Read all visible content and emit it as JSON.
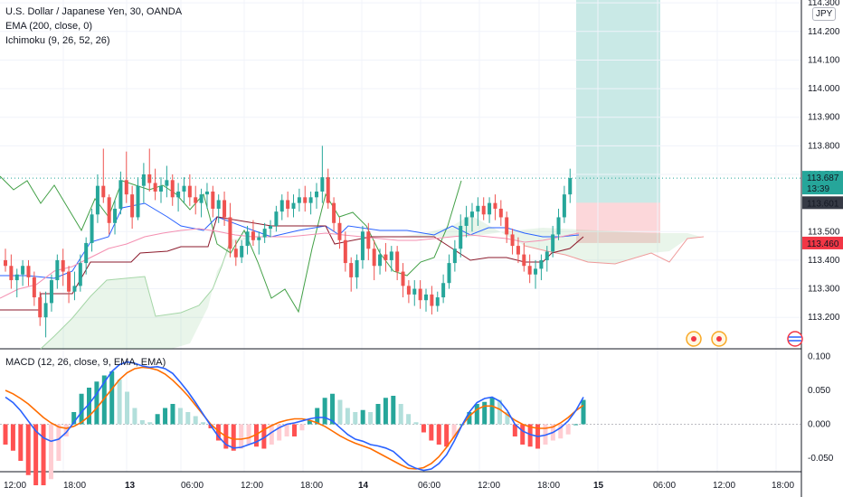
{
  "legend": {
    "symbol_line": "U.S. Dollar / Japanese Yen, 30, OANDA",
    "ema_line": "EMA (200, close, 0)",
    "ichimoku_line": "Ichimoku (9, 26, 52, 26)",
    "macd_line": "MACD (12, 26, close, 9, EMA, EMA)"
  },
  "currency_badge": "JPY",
  "price_scale": {
    "ticks": [
      "114.300",
      "114.200",
      "114.100",
      "114.000",
      "113.900",
      "113.800",
      "113.700",
      "113.500",
      "113.400",
      "113.300",
      "113.200"
    ],
    "current_price": "113.687",
    "countdown": "13:39",
    "entry_price": "113.601",
    "stop_price": "113.460",
    "colors": {
      "current": "#26a69a",
      "entry": "#363a45",
      "stop": "#f23645"
    }
  },
  "macd_scale": {
    "ticks": [
      "0.100",
      "0.050",
      "0.000",
      "-0.050"
    ]
  },
  "time_axis": {
    "labels": [
      "12:00",
      "18:00",
      "13",
      "06:00",
      "12:00",
      "18:00",
      "14",
      "06:00",
      "12:00",
      "18:00",
      "15",
      "06:00",
      "12:00",
      "18:00"
    ],
    "bold_labels": [
      "13",
      "14",
      "15"
    ]
  },
  "chart_data": {
    "type": "candlestick",
    "symbol": "USDJPY",
    "interval": "30",
    "price_range": [
      113.09,
      114.31
    ],
    "candles": [
      [
        113.4,
        113.44,
        113.36,
        113.38
      ],
      [
        113.38,
        113.42,
        113.3,
        113.33
      ],
      [
        113.33,
        113.37,
        113.27,
        113.35
      ],
      [
        113.35,
        113.4,
        113.31,
        113.38
      ],
      [
        113.38,
        113.4,
        113.31,
        113.34
      ],
      [
        113.34,
        113.36,
        113.24,
        113.27
      ],
      [
        113.27,
        113.29,
        113.17,
        113.2
      ],
      [
        113.2,
        113.29,
        113.13,
        113.25
      ],
      [
        113.25,
        113.35,
        113.22,
        113.33
      ],
      [
        113.33,
        113.42,
        113.3,
        113.4
      ],
      [
        113.4,
        113.44,
        113.31,
        113.36
      ],
      [
        113.36,
        113.38,
        113.25,
        113.29
      ],
      [
        113.29,
        113.36,
        113.26,
        113.31
      ],
      [
        113.31,
        113.42,
        113.29,
        113.39
      ],
      [
        113.39,
        113.48,
        113.35,
        113.46
      ],
      [
        113.46,
        113.58,
        113.43,
        113.56
      ],
      [
        113.56,
        113.7,
        113.53,
        113.66
      ],
      [
        113.66,
        113.79,
        113.6,
        113.62
      ],
      [
        113.62,
        113.63,
        113.49,
        113.53
      ],
      [
        113.53,
        113.61,
        113.49,
        113.58
      ],
      [
        113.58,
        113.71,
        113.56,
        113.68
      ],
      [
        113.68,
        113.78,
        113.6,
        113.63
      ],
      [
        113.63,
        113.66,
        113.51,
        113.55
      ],
      [
        113.55,
        113.69,
        113.54,
        113.66
      ],
      [
        113.66,
        113.74,
        113.6,
        113.7
      ],
      [
        113.7,
        113.79,
        113.64,
        113.67
      ],
      [
        113.67,
        113.72,
        113.61,
        113.64
      ],
      [
        113.64,
        113.69,
        113.6,
        113.66
      ],
      [
        113.66,
        113.73,
        113.62,
        113.68
      ],
      [
        113.68,
        113.7,
        113.59,
        113.62
      ],
      [
        113.62,
        113.67,
        113.57,
        113.64
      ],
      [
        113.64,
        113.69,
        113.6,
        113.66
      ],
      [
        113.66,
        113.7,
        113.59,
        113.62
      ],
      [
        113.62,
        113.66,
        113.56,
        113.6
      ],
      [
        113.6,
        113.65,
        113.55,
        113.63
      ],
      [
        113.63,
        113.67,
        113.58,
        113.64
      ],
      [
        113.64,
        113.66,
        113.55,
        113.58
      ],
      [
        113.58,
        113.63,
        113.53,
        113.61
      ],
      [
        113.61,
        113.64,
        113.52,
        113.55
      ],
      [
        113.55,
        113.6,
        113.41,
        113.44
      ],
      [
        113.44,
        113.47,
        113.38,
        113.41
      ],
      [
        113.41,
        113.47,
        113.39,
        113.45
      ],
      [
        113.45,
        113.52,
        113.42,
        113.5
      ],
      [
        113.5,
        113.54,
        113.45,
        113.47
      ],
      [
        113.47,
        113.5,
        113.42,
        113.48
      ],
      [
        113.48,
        113.53,
        113.46,
        113.51
      ],
      [
        113.51,
        113.54,
        113.48,
        113.52
      ],
      [
        113.52,
        113.59,
        113.5,
        113.57
      ],
      [
        113.57,
        113.63,
        113.54,
        113.61
      ],
      [
        113.61,
        113.64,
        113.55,
        113.58
      ],
      [
        113.58,
        113.63,
        113.55,
        113.6
      ],
      [
        113.6,
        113.65,
        113.57,
        113.62
      ],
      [
        113.62,
        113.66,
        113.57,
        113.6
      ],
      [
        113.6,
        113.64,
        113.56,
        113.62
      ],
      [
        113.62,
        113.67,
        113.58,
        113.64
      ],
      [
        113.64,
        113.8,
        113.6,
        113.69
      ],
      [
        113.69,
        113.72,
        113.58,
        113.6
      ],
      [
        113.6,
        113.62,
        113.5,
        113.53
      ],
      [
        113.53,
        113.55,
        113.44,
        113.47
      ],
      [
        113.47,
        113.5,
        113.36,
        113.39
      ],
      [
        113.39,
        113.41,
        113.29,
        113.34
      ],
      [
        113.34,
        113.42,
        113.3,
        113.4
      ],
      [
        113.4,
        113.52,
        113.37,
        113.5
      ],
      [
        113.5,
        113.53,
        113.4,
        113.44
      ],
      [
        113.44,
        113.47,
        113.33,
        113.38
      ],
      [
        113.38,
        113.44,
        113.35,
        113.42
      ],
      [
        113.42,
        113.46,
        113.36,
        113.4
      ],
      [
        113.4,
        113.45,
        113.36,
        113.43
      ],
      [
        113.43,
        113.45,
        113.33,
        113.36
      ],
      [
        113.36,
        113.39,
        113.27,
        113.31
      ],
      [
        113.31,
        113.33,
        113.25,
        113.28
      ],
      [
        113.28,
        113.33,
        113.24,
        113.3
      ],
      [
        113.3,
        113.33,
        113.23,
        113.26
      ],
      [
        113.26,
        113.3,
        113.22,
        113.28
      ],
      [
        113.28,
        113.31,
        113.21,
        113.24
      ],
      [
        113.24,
        113.29,
        113.22,
        113.27
      ],
      [
        113.27,
        113.35,
        113.25,
        113.32
      ],
      [
        113.32,
        113.42,
        113.3,
        113.39
      ],
      [
        113.39,
        113.47,
        113.36,
        113.44
      ],
      [
        113.44,
        113.56,
        113.41,
        113.52
      ],
      [
        113.52,
        113.59,
        113.48,
        113.55
      ],
      [
        113.55,
        113.6,
        113.5,
        113.57
      ],
      [
        113.57,
        113.62,
        113.52,
        113.59
      ],
      [
        113.59,
        113.62,
        113.54,
        113.56
      ],
      [
        113.56,
        113.62,
        113.53,
        113.6
      ],
      [
        113.6,
        113.63,
        113.54,
        113.58
      ],
      [
        113.58,
        113.61,
        113.52,
        113.55
      ],
      [
        113.55,
        113.57,
        113.46,
        113.49
      ],
      [
        113.49,
        113.51,
        113.42,
        113.45
      ],
      [
        113.45,
        113.48,
        113.39,
        113.42
      ],
      [
        113.42,
        113.46,
        113.36,
        113.38
      ],
      [
        113.38,
        113.42,
        113.32,
        113.35
      ],
      [
        113.35,
        113.4,
        113.3,
        113.37
      ],
      [
        113.37,
        113.42,
        113.33,
        113.4
      ],
      [
        113.4,
        113.45,
        113.36,
        113.43
      ],
      [
        113.43,
        113.52,
        113.41,
        113.49
      ],
      [
        113.49,
        113.58,
        113.47,
        113.55
      ],
      [
        113.55,
        113.66,
        113.53,
        113.63
      ],
      [
        113.63,
        113.72,
        113.6,
        113.687
      ]
    ],
    "trade_setup": {
      "type": "long",
      "entry": 113.601,
      "take_profit": 114.31,
      "stop_loss": 113.46
    },
    "macd_range": [
      -0.07,
      0.11
    ],
    "macd_line": [
      0.04,
      0.032,
      0.02,
      0.005,
      -0.01,
      -0.02,
      -0.025,
      -0.022,
      -0.012,
      0.003,
      0.018,
      0.03,
      0.045,
      0.062,
      0.078,
      0.088,
      0.092,
      0.09,
      0.086,
      0.084,
      0.085,
      0.082,
      0.075,
      0.062,
      0.048,
      0.032,
      0.015,
      -0.002,
      -0.018,
      -0.03,
      -0.035,
      -0.034,
      -0.03,
      -0.026,
      -0.02,
      -0.012,
      -0.005,
      0.0,
      0.002,
      0.005,
      0.008,
      0.01,
      0.01,
      0.005,
      -0.005,
      -0.015,
      -0.022,
      -0.025,
      -0.03,
      -0.032,
      -0.035,
      -0.04,
      -0.05,
      -0.06,
      -0.065,
      -0.068,
      -0.066,
      -0.058,
      -0.045,
      -0.025,
      -0.002,
      0.018,
      0.032,
      0.038,
      0.04,
      0.034,
      0.02,
      0.0,
      -0.01,
      -0.015,
      -0.018,
      -0.016,
      -0.012,
      -0.005,
      0.005,
      0.02,
      0.04
    ],
    "signal_line": [
      0.05,
      0.045,
      0.038,
      0.03,
      0.02,
      0.01,
      0.002,
      -0.004,
      -0.006,
      -0.003,
      0.003,
      0.012,
      0.024,
      0.038,
      0.052,
      0.066,
      0.076,
      0.082,
      0.084,
      0.083,
      0.08,
      0.074,
      0.065,
      0.054,
      0.042,
      0.028,
      0.014,
      0.0,
      -0.01,
      -0.018,
      -0.022,
      -0.022,
      -0.02,
      -0.015,
      -0.008,
      -0.002,
      0.003,
      0.006,
      0.008,
      0.008,
      0.006,
      0.002,
      -0.003,
      -0.01,
      -0.017,
      -0.023,
      -0.028,
      -0.032,
      -0.036,
      -0.042,
      -0.048,
      -0.054,
      -0.06,
      -0.065,
      -0.066,
      -0.064,
      -0.058,
      -0.048,
      -0.034,
      -0.018,
      -0.002,
      0.012,
      0.022,
      0.027,
      0.027,
      0.022,
      0.014,
      0.006,
      0.0,
      -0.004,
      -0.006,
      -0.006,
      -0.004,
      0.002,
      0.01,
      0.02,
      0.028
    ]
  }
}
